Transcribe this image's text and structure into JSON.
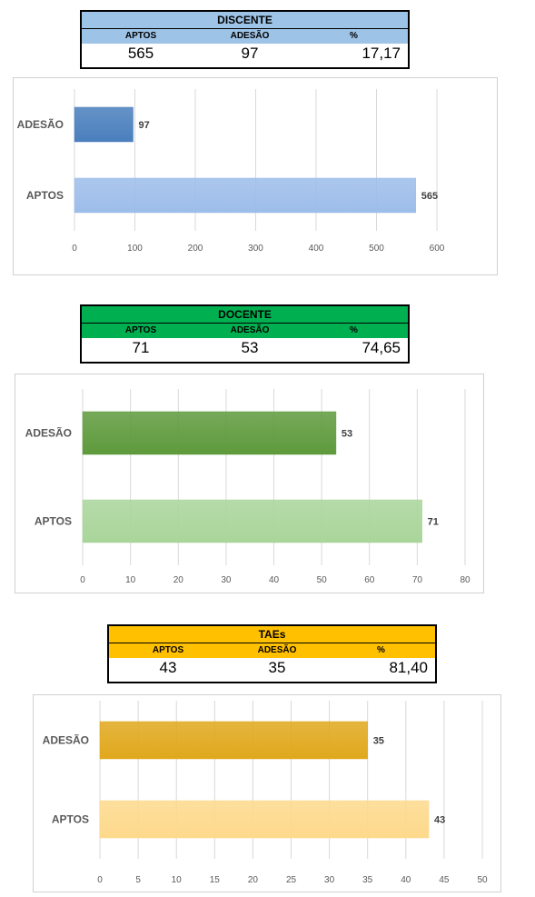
{
  "tables": [
    {
      "title": "DISCENTE",
      "headers": [
        "APTOS",
        "ADESÃO",
        "%"
      ],
      "values": [
        "565",
        "97",
        "17,17"
      ],
      "colors": {
        "title_bg": "#9dc3e6",
        "header_bg": "#9dc3e6"
      }
    },
    {
      "title": "DOCENTE",
      "headers": [
        "APTOS",
        "ADESÃO",
        "%"
      ],
      "values": [
        "71",
        "53",
        "74,65"
      ],
      "colors": {
        "title_bg": "#00b050",
        "header_bg": "#00b050"
      }
    },
    {
      "title": "TAEs",
      "headers": [
        "APTOS",
        "ADESÃO",
        "%"
      ],
      "values": [
        "43",
        "35",
        "81,40"
      ],
      "colors": {
        "title_bg": "#ffc000",
        "header_bg": "#ffc000"
      }
    }
  ],
  "chart_data": [
    {
      "type": "bar",
      "orientation": "horizontal",
      "categories": [
        "ADESÃO",
        "APTOS"
      ],
      "values": [
        97,
        565
      ],
      "xlim": [
        0,
        600
      ],
      "ticks": [
        0,
        100,
        200,
        300,
        400,
        500,
        600
      ],
      "grid": true,
      "colors": {
        "ADESÃO": "#4a7fbd",
        "APTOS": "#9dbdea"
      }
    },
    {
      "type": "bar",
      "orientation": "horizontal",
      "categories": [
        "ADESÃO",
        "APTOS"
      ],
      "values": [
        53,
        71
      ],
      "xlim": [
        0,
        80
      ],
      "ticks": [
        0,
        10,
        20,
        30,
        40,
        50,
        60,
        70,
        80
      ],
      "grid": true,
      "colors": {
        "ADESÃO": "#5e9a3c",
        "APTOS": "#a9d59a"
      }
    },
    {
      "type": "bar",
      "orientation": "horizontal",
      "categories": [
        "ADESÃO",
        "APTOS"
      ],
      "values": [
        35,
        43
      ],
      "xlim": [
        0,
        50
      ],
      "ticks": [
        0,
        5,
        10,
        15,
        20,
        25,
        30,
        35,
        40,
        45,
        50
      ],
      "grid": true,
      "colors": {
        "ADESÃO": "#e0a81c",
        "APTOS": "#fdd98b"
      }
    }
  ]
}
